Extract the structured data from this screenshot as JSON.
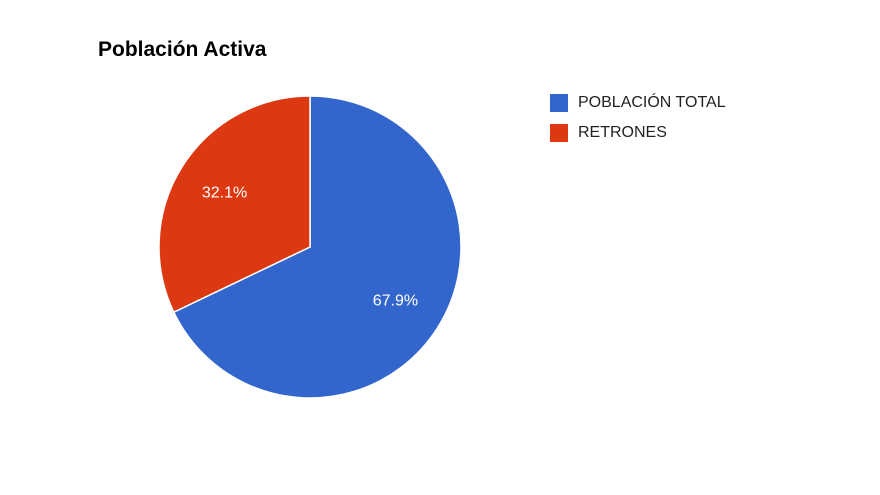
{
  "chart_data": {
    "type": "pie",
    "title": "Población Activa",
    "categories": [
      "POBLACIÓN TOTAL",
      "RETRONES"
    ],
    "values": [
      67.9,
      32.1
    ],
    "labels": [
      "67.9%",
      "32.1%"
    ],
    "colors": [
      "#3366cc",
      "#dc3912"
    ],
    "legend_position": "right",
    "start_angle_deg": 0,
    "direction": "clockwise"
  }
}
